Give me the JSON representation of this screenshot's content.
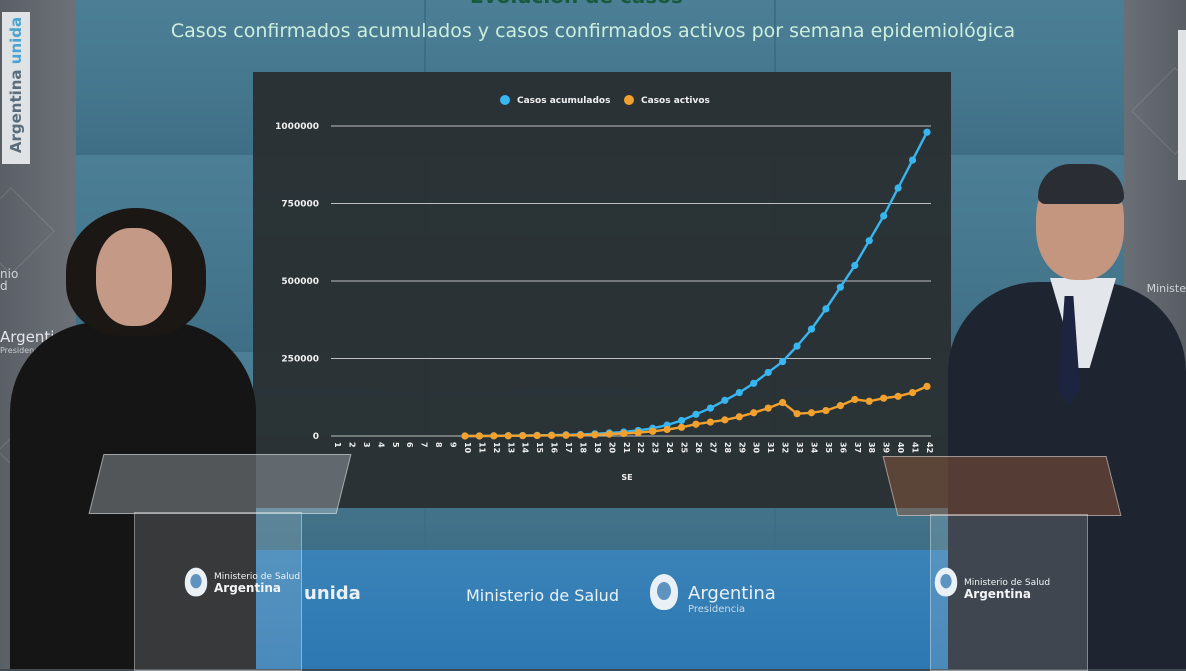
{
  "header": {
    "title_partial": "Evolución de casos",
    "subtitle": "Casos confirmados acumulados y casos confirmados activos por semana epidemiológica"
  },
  "walls": {
    "left_banner": {
      "main": "Argentina ",
      "accent": "unida"
    },
    "left_text_1": "nio\nd",
    "left_text_2": "Argentina",
    "left_text_3": "Presidencia",
    "right_text": "Ministe"
  },
  "bottom_screen": {
    "ministerio": "Ministerio de Salud",
    "argentina": "Argentina",
    "presidencia": "Presidencia",
    "unida": "unida"
  },
  "podiums": {
    "left": {
      "line1": "Ministerio de Salud",
      "line2": "Argentina"
    },
    "right": {
      "line1": "Ministerio de Salud",
      "line2": "Argentina"
    }
  },
  "colors": {
    "acumulados": "#38b6f0",
    "activos": "#f2a12e",
    "grid": "#d8d8d8"
  },
  "chart_data": {
    "type": "line",
    "title": "Casos confirmados acumulados y casos confirmados activos por semana epidemiológica",
    "xlabel": "SE",
    "ylabel": "",
    "ylim": [
      0,
      1000000
    ],
    "yticks": [
      0,
      250000,
      500000,
      750000,
      1000000
    ],
    "ytick_labels": [
      "0",
      "250000",
      "500000",
      "750000",
      "1000000"
    ],
    "grid": true,
    "legend": "top-center",
    "x": [
      1,
      2,
      3,
      4,
      5,
      6,
      7,
      8,
      9,
      10,
      11,
      12,
      13,
      14,
      15,
      16,
      17,
      18,
      19,
      20,
      21,
      22,
      23,
      24,
      25,
      26,
      27,
      28,
      29,
      30,
      31,
      32,
      33,
      34,
      35,
      36,
      37,
      38,
      39,
      40,
      41,
      42
    ],
    "series": [
      {
        "name": "Casos acumulados",
        "values": [
          null,
          null,
          null,
          null,
          null,
          null,
          null,
          null,
          null,
          0,
          100,
          500,
          1000,
          1500,
          2200,
          3000,
          4000,
          5000,
          7000,
          10000,
          13000,
          18000,
          25000,
          35000,
          50000,
          70000,
          90000,
          115000,
          140000,
          170000,
          205000,
          240000,
          290000,
          345000,
          410000,
          480000,
          550000,
          630000,
          710000,
          800000,
          890000,
          980000
        ]
      },
      {
        "name": "Casos activos",
        "values": [
          null,
          null,
          null,
          null,
          null,
          null,
          null,
          null,
          null,
          0,
          100,
          400,
          700,
          1000,
          1400,
          1800,
          2300,
          2800,
          4000,
          6000,
          8000,
          11000,
          15000,
          21000,
          28000,
          38000,
          45000,
          52000,
          62000,
          75000,
          90000,
          108000,
          72000,
          75000,
          82000,
          98000,
          118000,
          112000,
          122000,
          128000,
          140000,
          160000
        ]
      }
    ]
  }
}
